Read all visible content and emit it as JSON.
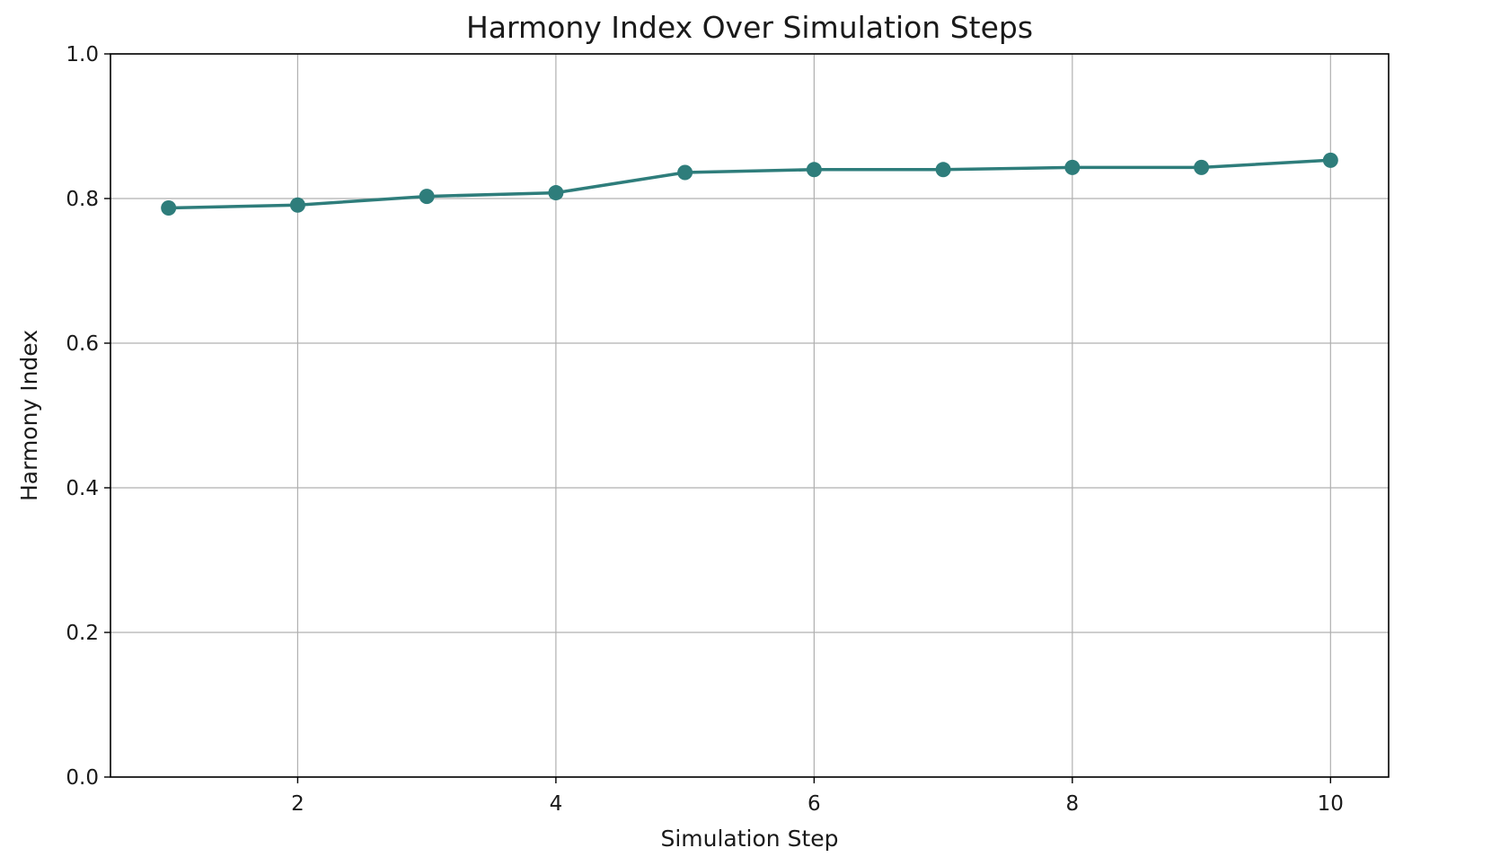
{
  "chart_data": {
    "type": "line",
    "title": "Harmony Index Over Simulation Steps",
    "xlabel": "Simulation Step",
    "ylabel": "Harmony Index",
    "xlim": [
      0.55,
      10.45
    ],
    "ylim": [
      0.0,
      1.0
    ],
    "xticks": [
      2,
      4,
      6,
      8,
      10
    ],
    "yticks": [
      0.0,
      0.2,
      0.4,
      0.6,
      0.8,
      1.0
    ],
    "xtick_labels": [
      "2",
      "4",
      "6",
      "8",
      "10"
    ],
    "ytick_labels": [
      "0.0",
      "0.2",
      "0.4",
      "0.6",
      "0.8",
      "1.0"
    ],
    "grid": true,
    "legend": false,
    "series": [
      {
        "color": "#2e7d7b",
        "marker": "circle",
        "x": [
          1,
          2,
          3,
          4,
          5,
          6,
          7,
          8,
          9,
          10
        ],
        "y": [
          0.787,
          0.791,
          0.803,
          0.808,
          0.836,
          0.84,
          0.84,
          0.843,
          0.843,
          0.853
        ]
      }
    ]
  }
}
